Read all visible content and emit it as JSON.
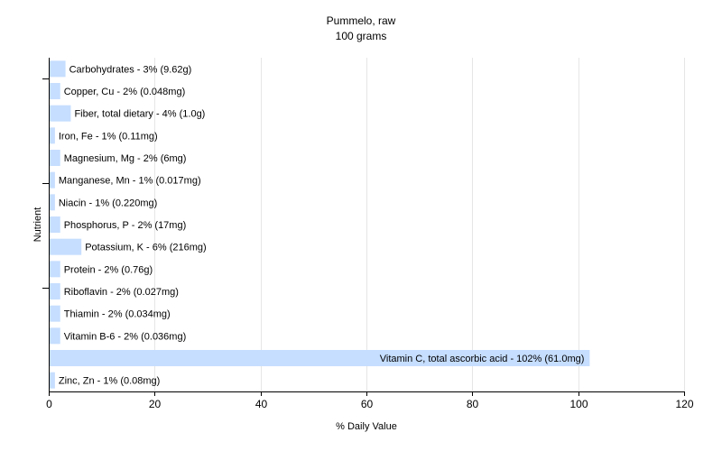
{
  "chart_data": {
    "type": "bar",
    "orientation": "horizontal",
    "title": "Pummelo, raw",
    "subtitle": "100 grams",
    "xlabel": "% Daily Value",
    "ylabel": "Nutrient",
    "xlim": [
      0,
      120
    ],
    "x_ticks": [
      "0",
      "20",
      "40",
      "60",
      "80",
      "100",
      "120"
    ],
    "grid": "vertical",
    "bar_color": "#c6deff",
    "series": [
      {
        "categories": [
          "Carbohydrates",
          "Copper, Cu",
          "Fiber, total dietary",
          "Iron, Fe",
          "Magnesium, Mg",
          "Manganese, Mn",
          "Niacin",
          "Phosphorus, P",
          "Potassium, K",
          "Protein",
          "Riboflavin",
          "Thiamin",
          "Vitamin B-6",
          "Vitamin C, total ascorbic acid",
          "Zinc, Zn"
        ],
        "values": [
          3,
          2,
          4,
          1,
          2,
          1,
          1,
          2,
          6,
          2,
          2,
          2,
          2,
          102,
          1
        ],
        "labels": [
          "Carbohydrates - 3% (9.62g)",
          "Copper, Cu - 2% (0.048mg)",
          "Fiber, total dietary - 4% (1.0g)",
          "Iron, Fe - 1% (0.11mg)",
          "Magnesium, Mg - 2% (6mg)",
          "Manganese, Mn - 1% (0.017mg)",
          "Niacin - 1% (0.220mg)",
          "Phosphorus, P - 2% (17mg)",
          "Potassium, K - 6% (216mg)",
          "Protein - 2% (0.76g)",
          "Riboflavin - 2% (0.027mg)",
          "Thiamin - 2% (0.034mg)",
          "Vitamin B-6 - 2% (0.036mg)",
          "Vitamin C, total ascorbic acid - 102% (61.0mg)",
          "Zinc, Zn - 1% (0.08mg)"
        ]
      }
    ]
  }
}
